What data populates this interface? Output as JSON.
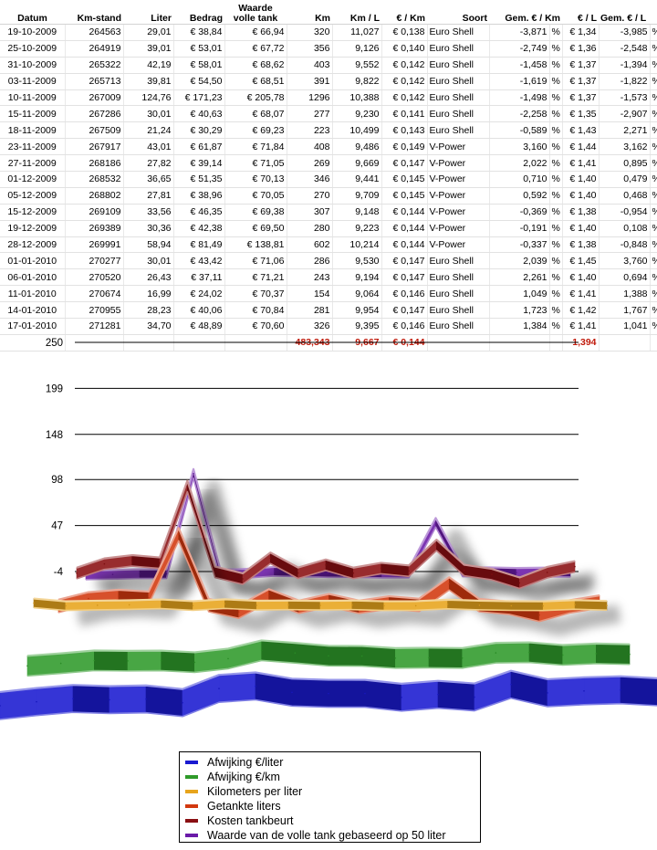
{
  "table": {
    "headers": [
      "Datum",
      "Km-stand",
      "Liter",
      "Bedrag",
      "Waarde volle tank",
      "Km",
      "Km / L",
      "€ / Km",
      "Soort",
      "Gem. € / Km",
      "",
      "€ / L",
      "Gem. € / L",
      ""
    ],
    "rows": [
      [
        "19-10-2009",
        "264563",
        "29,01",
        "€ 38,84",
        "€ 66,94",
        "320",
        "11,027",
        "€ 0,138",
        "Euro Shell",
        "-3,871",
        "%",
        "€ 1,34",
        "-3,985",
        "%"
      ],
      [
        "25-10-2009",
        "264919",
        "39,01",
        "€ 53,01",
        "€ 67,72",
        "356",
        "9,126",
        "€ 0,140",
        "Euro Shell",
        "-2,749",
        "%",
        "€ 1,36",
        "-2,548",
        "%"
      ],
      [
        "31-10-2009",
        "265322",
        "42,19",
        "€ 58,01",
        "€ 68,62",
        "403",
        "9,552",
        "€ 0,142",
        "Euro Shell",
        "-1,458",
        "%",
        "€ 1,37",
        "-1,394",
        "%"
      ],
      [
        "03-11-2009",
        "265713",
        "39,81",
        "€ 54,50",
        "€ 68,51",
        "391",
        "9,822",
        "€ 0,142",
        "Euro Shell",
        "-1,619",
        "%",
        "€ 1,37",
        "-1,822",
        "%"
      ],
      [
        "10-11-2009",
        "267009",
        "124,76",
        "€ 171,23",
        "€ 205,78",
        "1296",
        "10,388",
        "€ 0,142",
        "Euro Shell",
        "-1,498",
        "%",
        "€ 1,37",
        "-1,573",
        "%"
      ],
      [
        "15-11-2009",
        "267286",
        "30,01",
        "€ 40,63",
        "€ 68,07",
        "277",
        "9,230",
        "€ 0,141",
        "Euro Shell",
        "-2,258",
        "%",
        "€ 1,35",
        "-2,907",
        "%"
      ],
      [
        "18-11-2009",
        "267509",
        "21,24",
        "€ 30,29",
        "€ 69,23",
        "223",
        "10,499",
        "€ 0,143",
        "Euro Shell",
        "-0,589",
        "%",
        "€ 1,43",
        "2,271",
        "%"
      ],
      [
        "23-11-2009",
        "267917",
        "43,01",
        "€ 61,87",
        "€ 71,84",
        "408",
        "9,486",
        "€ 0,149",
        "V-Power",
        "3,160",
        "%",
        "€ 1,44",
        "3,162",
        "%"
      ],
      [
        "27-11-2009",
        "268186",
        "27,82",
        "€ 39,14",
        "€ 71,05",
        "269",
        "9,669",
        "€ 0,147",
        "V-Power",
        "2,022",
        "%",
        "€ 1,41",
        "0,895",
        "%"
      ],
      [
        "01-12-2009",
        "268532",
        "36,65",
        "€ 51,35",
        "€ 70,13",
        "346",
        "9,441",
        "€ 0,145",
        "V-Power",
        "0,710",
        "%",
        "€ 1,40",
        "0,479",
        "%"
      ],
      [
        "05-12-2009",
        "268802",
        "27,81",
        "€ 38,96",
        "€ 70,05",
        "270",
        "9,709",
        "€ 0,145",
        "V-Power",
        "0,592",
        "%",
        "€ 1,40",
        "0,468",
        "%"
      ],
      [
        "15-12-2009",
        "269109",
        "33,56",
        "€ 46,35",
        "€ 69,38",
        "307",
        "9,148",
        "€ 0,144",
        "V-Power",
        "-0,369",
        "%",
        "€ 1,38",
        "-0,954",
        "%"
      ],
      [
        "19-12-2009",
        "269389",
        "30,36",
        "€ 42,38",
        "€ 69,50",
        "280",
        "9,223",
        "€ 0,144",
        "V-Power",
        "-0,191",
        "%",
        "€ 1,40",
        "0,108",
        "%"
      ],
      [
        "28-12-2009",
        "269991",
        "58,94",
        "€ 81,49",
        "€ 138,81",
        "602",
        "10,214",
        "€ 0,144",
        "V-Power",
        "-0,337",
        "%",
        "€ 1,38",
        "-0,848",
        "%"
      ],
      [
        "01-01-2010",
        "270277",
        "30,01",
        "€ 43,42",
        "€ 71,06",
        "286",
        "9,530",
        "€ 0,147",
        "Euro Shell",
        "2,039",
        "%",
        "€ 1,45",
        "3,760",
        "%"
      ],
      [
        "06-01-2010",
        "270520",
        "26,43",
        "€ 37,11",
        "€ 71,21",
        "243",
        "9,194",
        "€ 0,147",
        "Euro Shell",
        "2,261",
        "%",
        "€ 1,40",
        "0,694",
        "%"
      ],
      [
        "11-01-2010",
        "270674",
        "16,99",
        "€ 24,02",
        "€ 70,37",
        "154",
        "9,064",
        "€ 0,146",
        "Euro Shell",
        "1,049",
        "%",
        "€ 1,41",
        "1,388",
        "%"
      ],
      [
        "14-01-2010",
        "270955",
        "28,23",
        "€ 40,06",
        "€ 70,84",
        "281",
        "9,954",
        "€ 0,147",
        "Euro Shell",
        "1,723",
        "%",
        "€ 1,42",
        "1,767",
        "%"
      ],
      [
        "17-01-2010",
        "271281",
        "34,70",
        "€ 48,89",
        "€ 70,60",
        "326",
        "9,395",
        "€ 0,146",
        "Euro Shell",
        "1,384",
        "%",
        "€ 1,41",
        "1,041",
        "%"
      ]
    ],
    "totals": [
      "",
      "",
      "",
      "",
      "",
      "483,343",
      "9,667",
      "€ 0,144",
      "",
      "",
      "",
      "1,394",
      "",
      ""
    ]
  },
  "chart_data": {
    "type": "line",
    "style": "3d-ribbon",
    "ylim": [
      -4,
      250
    ],
    "y_ticks": [
      "250",
      "199",
      "148",
      "98",
      "47",
      "-4"
    ],
    "grid": true,
    "legend_position": "bottom",
    "series": [
      {
        "name": "Afwijking €/liter",
        "color": "#1a1ad0",
        "values": [
          -3.985,
          -2.548,
          -1.394,
          -1.822,
          -1.573,
          -2.907,
          2.271,
          3.162,
          0.895,
          0.479,
          0.468,
          -0.954,
          0.108,
          -0.848,
          3.76,
          0.694,
          1.388,
          1.767,
          1.041
        ]
      },
      {
        "name": "Afwijking €/km",
        "color": "#2f9a2a",
        "values": [
          -3.871,
          -2.749,
          -1.458,
          -1.619,
          -1.498,
          -2.258,
          -0.589,
          3.16,
          2.022,
          0.71,
          0.592,
          -0.369,
          -0.191,
          -0.337,
          2.039,
          2.261,
          1.049,
          1.723,
          1.384
        ]
      },
      {
        "name": "Kilometers per liter",
        "color": "#e7a41c",
        "values": [
          11.027,
          9.126,
          9.552,
          9.822,
          10.388,
          9.23,
          10.499,
          9.486,
          9.669,
          9.441,
          9.709,
          9.148,
          9.223,
          10.214,
          9.53,
          9.194,
          9.064,
          9.954,
          9.395
        ]
      },
      {
        "name": "Getankte liters",
        "color": "#d2380e",
        "values": [
          29.01,
          39.01,
          42.19,
          39.81,
          124.76,
          30.01,
          21.24,
          43.01,
          27.82,
          36.65,
          27.81,
          33.56,
          30.36,
          58.94,
          30.01,
          26.43,
          16.99,
          28.23,
          34.7
        ]
      },
      {
        "name": "Kosten tankbeurt",
        "color": "#8a0f12",
        "values": [
          38.84,
          53.01,
          58.01,
          54.5,
          171.23,
          40.63,
          30.29,
          61.87,
          39.14,
          51.35,
          38.96,
          46.35,
          42.38,
          81.49,
          43.42,
          37.11,
          24.02,
          40.06,
          48.89
        ]
      },
      {
        "name": "Waarde van de volle tank gebaseerd op 50 liter",
        "color": "#6a1aa8",
        "values": [
          66.94,
          67.72,
          68.62,
          68.51,
          205.78,
          68.07,
          69.23,
          71.84,
          71.05,
          70.13,
          70.05,
          69.38,
          69.5,
          138.81,
          71.06,
          71.21,
          70.37,
          70.84,
          70.6
        ]
      }
    ]
  }
}
